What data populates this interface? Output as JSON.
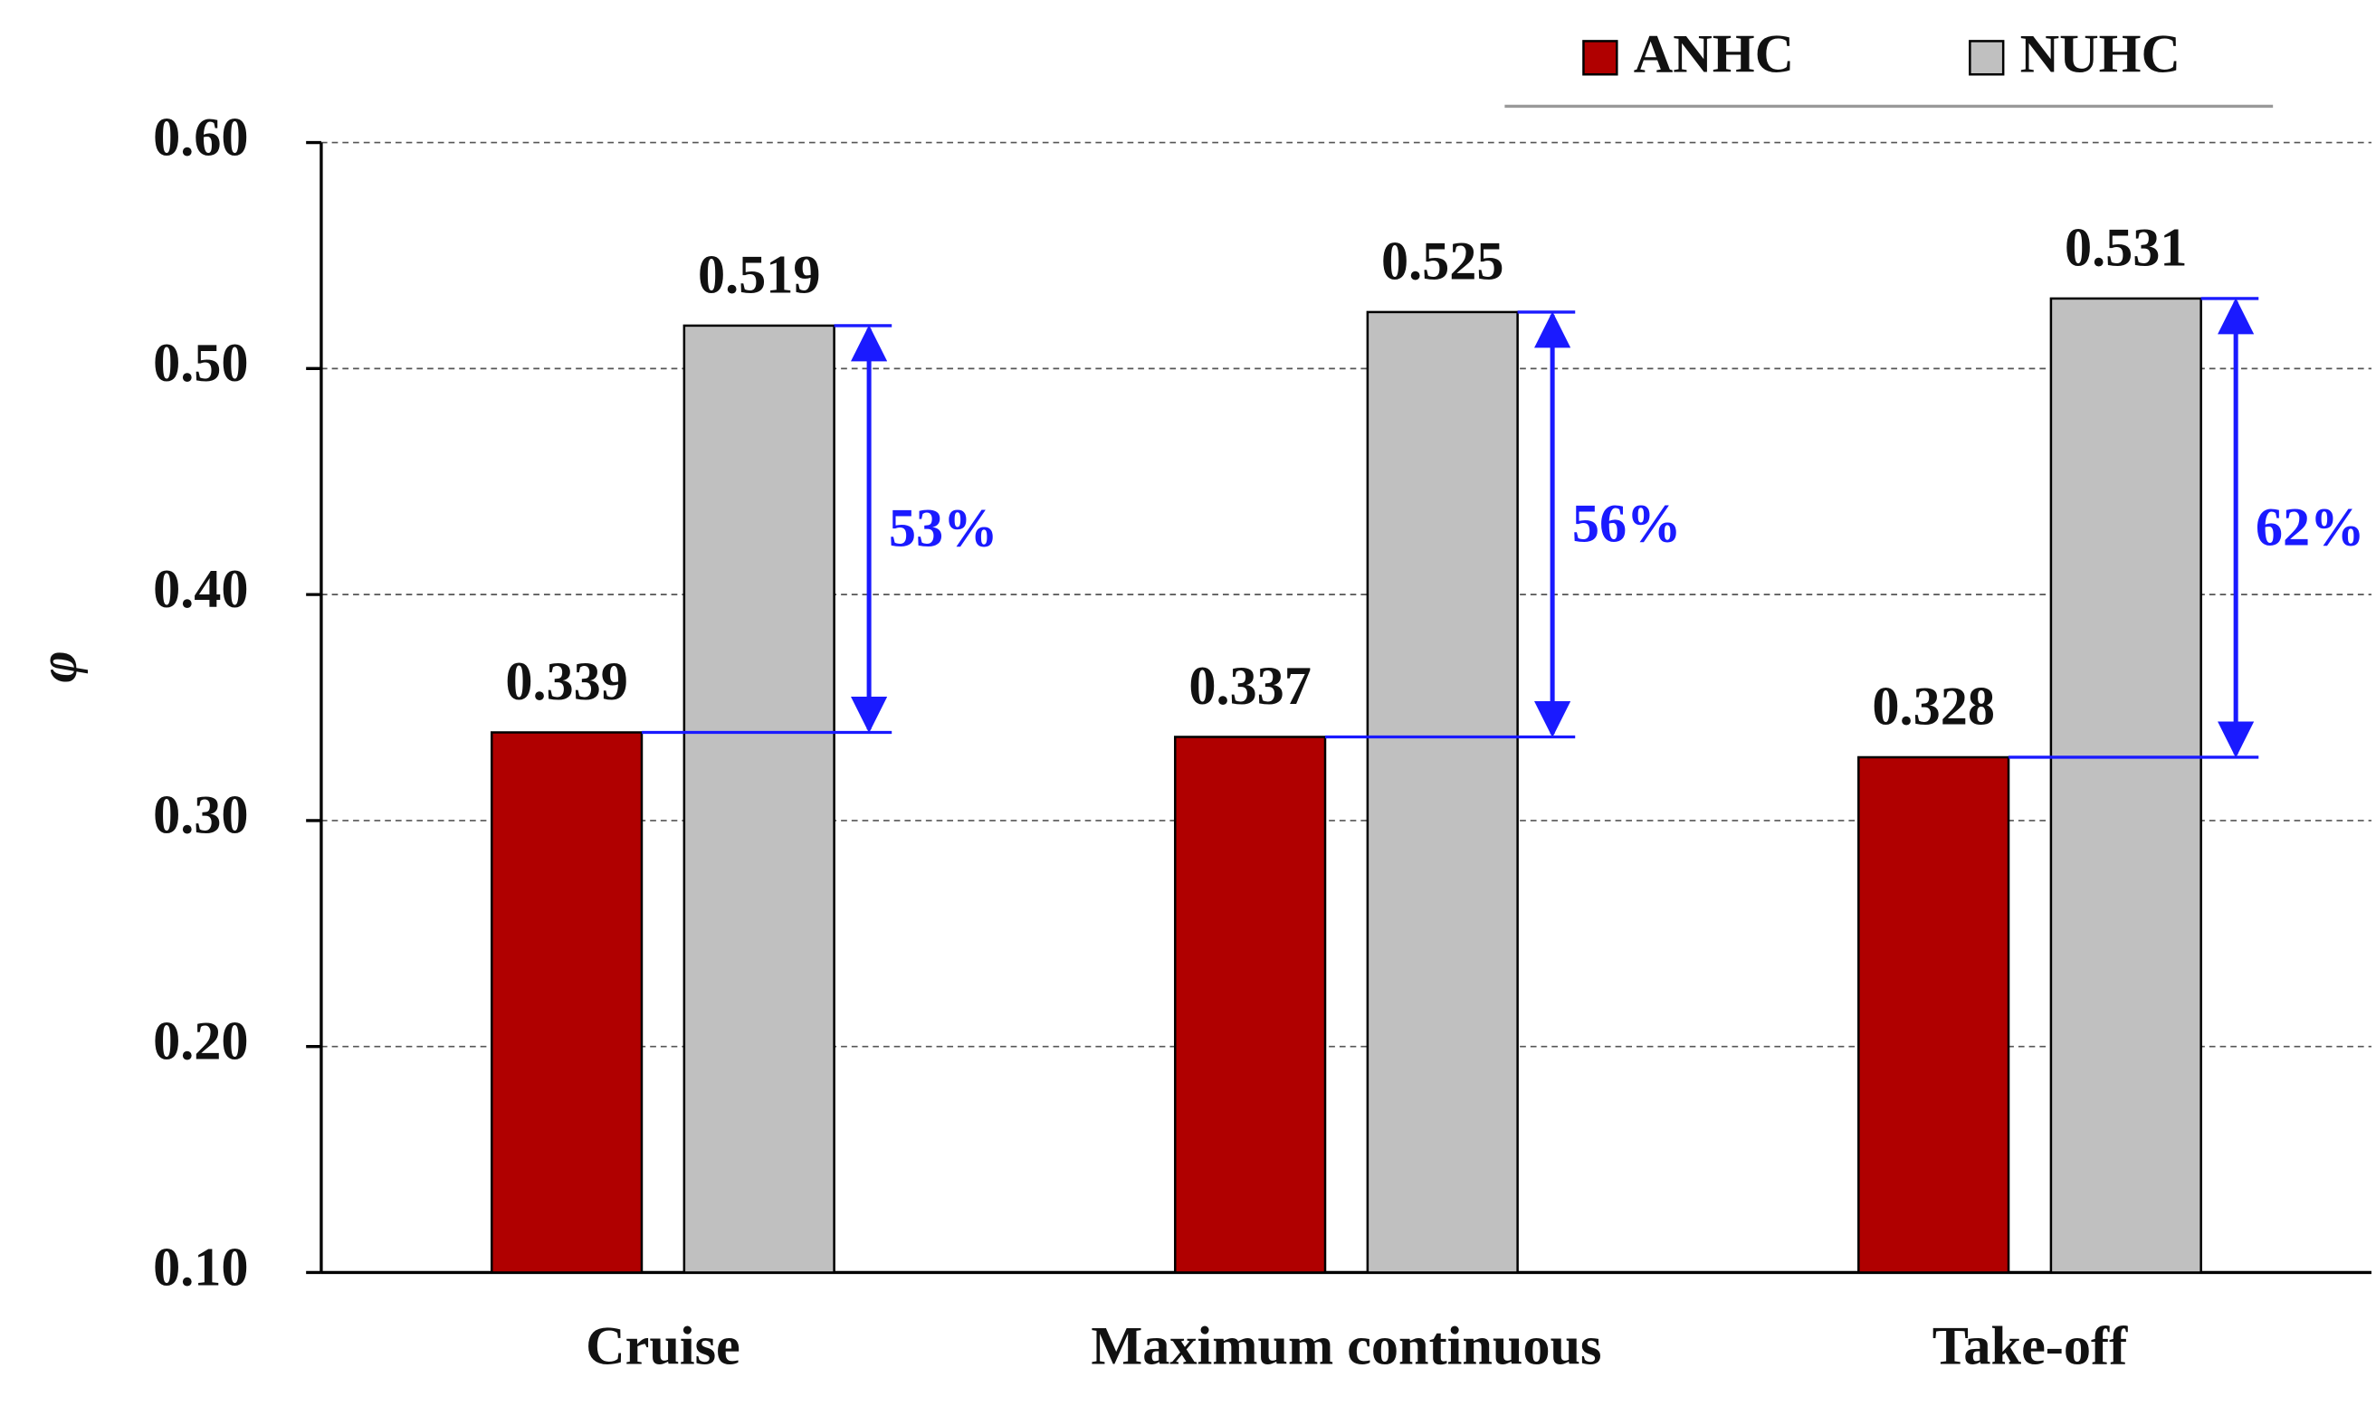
{
  "chart_data": {
    "type": "bar",
    "y_label": "φ",
    "categories": [
      "Cruise",
      "Maximum continuous",
      "Take-off"
    ],
    "series": [
      {
        "name": "ANHC",
        "color": "#b00000",
        "values": [
          0.339,
          0.337,
          0.328
        ]
      },
      {
        "name": "NUHC",
        "color": "#c0c0c0",
        "values": [
          0.519,
          0.525,
          0.531
        ]
      }
    ],
    "annotations": [
      "53%",
      "56%",
      "62%"
    ],
    "annotation_color": "#1a1aff",
    "ylim": [
      0.1,
      0.6
    ],
    "yticks": [
      {
        "value": 0.1,
        "label": "0.10"
      },
      {
        "value": 0.2,
        "label": "0.20"
      },
      {
        "value": 0.3,
        "label": "0.30"
      },
      {
        "value": 0.4,
        "label": "0.40"
      },
      {
        "value": 0.5,
        "label": "0.50"
      },
      {
        "value": 0.6,
        "label": "0.60"
      }
    ],
    "grid": true,
    "legend": "top-right"
  }
}
